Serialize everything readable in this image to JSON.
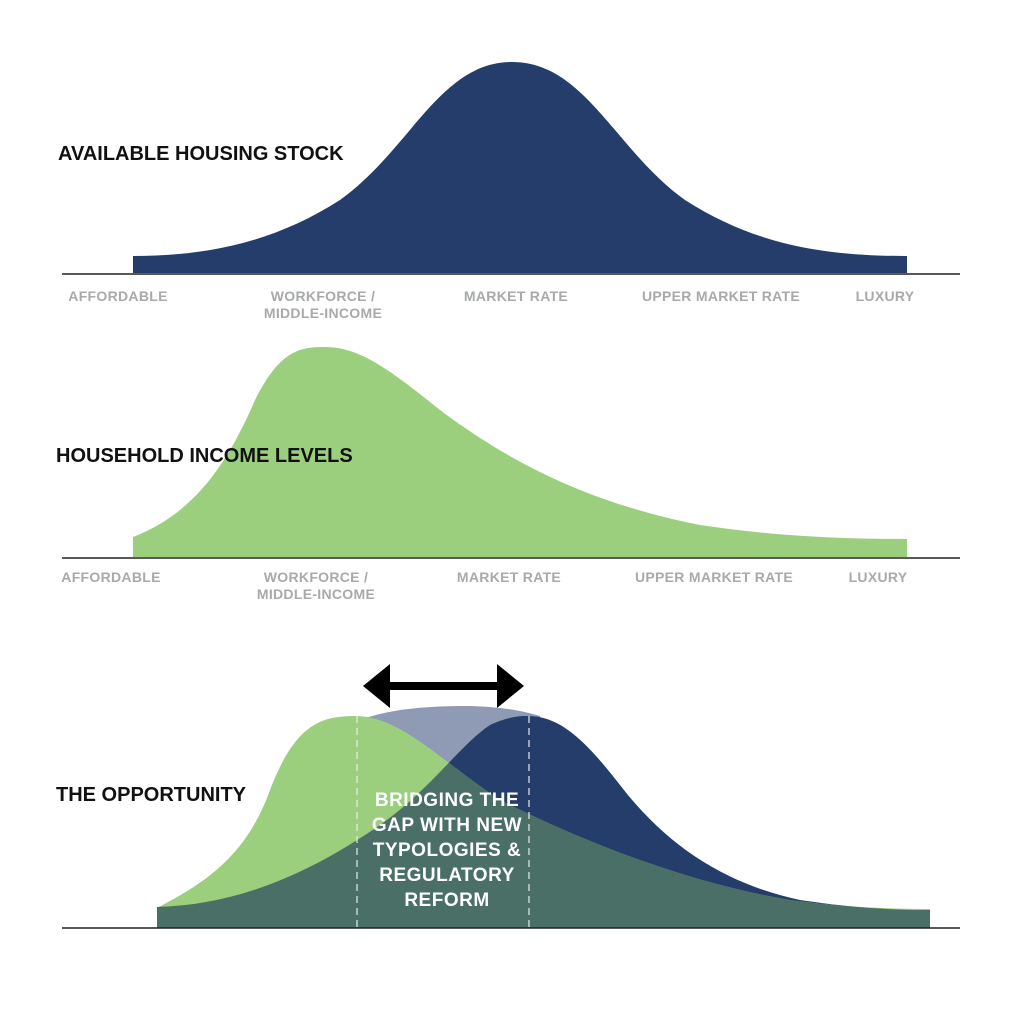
{
  "colors": {
    "housing": "#243d6b",
    "income": "#9bcf7e",
    "overlap": "#4a6f66",
    "gap_band": "#8f9bb5",
    "axis": "#222222",
    "tick_label": "#a7a9ab",
    "title": "#111111",
    "arrow": "#000000"
  },
  "sections": [
    {
      "id": "housing",
      "title": "AVAILABLE HOUSING STOCK",
      "ticks": [
        "AFFORDABLE",
        [
          "WORKFORCE /",
          "MIDDLE-INCOME"
        ],
        "MARKET RATE",
        "UPPER MARKET RATE",
        "LUXURY"
      ]
    },
    {
      "id": "income",
      "title": "HOUSEHOLD INCOME LEVELS",
      "ticks": [
        "AFFORDABLE",
        [
          "WORKFORCE /",
          "MIDDLE-INCOME"
        ],
        "MARKET RATE",
        "UPPER MARKET RATE",
        "LUXURY"
      ]
    },
    {
      "id": "opportunity",
      "title": "THE OPPORTUNITY",
      "gap_label": [
        "BRIDGING THE",
        "GAP WITH NEW",
        "TYPOLOGIES &",
        "REGULATORY",
        "REFORM"
      ]
    }
  ]
}
